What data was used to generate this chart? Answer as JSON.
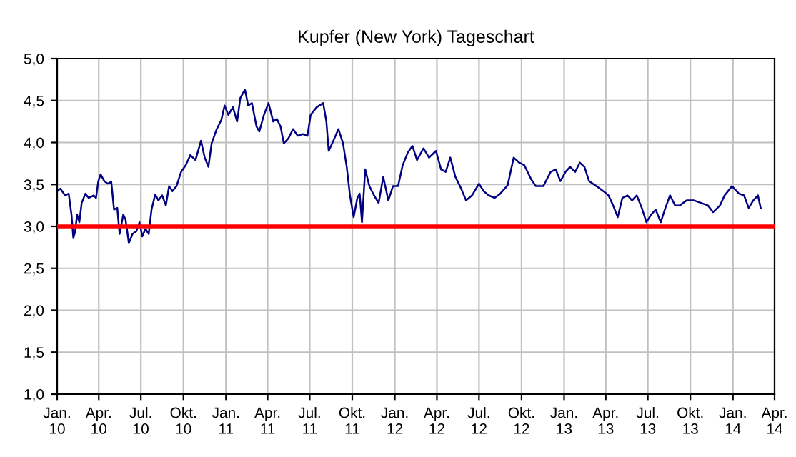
{
  "chart_data": {
    "type": "line",
    "title": "Kupfer (New York) Tageschart",
    "x": [
      "2010-01-01",
      "2010-01-08",
      "2010-01-18",
      "2010-01-26",
      "2010-02-01",
      "2010-02-05",
      "2010-02-09",
      "2010-02-13",
      "2010-02-18",
      "2010-02-23",
      "2010-03-03",
      "2010-03-10",
      "2010-03-21",
      "2010-03-26",
      "2010-03-31",
      "2010-04-05",
      "2010-04-13",
      "2010-04-20",
      "2010-04-28",
      "2010-05-04",
      "2010-05-11",
      "2010-05-16",
      "2010-05-24",
      "2010-05-29",
      "2010-06-05",
      "2010-06-13",
      "2010-06-21",
      "2010-06-28",
      "2010-07-04",
      "2010-07-11",
      "2010-07-18",
      "2010-07-24",
      "2010-08-01",
      "2010-08-08",
      "2010-08-16",
      "2010-08-24",
      "2010-08-31",
      "2010-09-07",
      "2010-09-16",
      "2010-09-26",
      "2010-10-06",
      "2010-10-16",
      "2010-10-27",
      "2010-11-08",
      "2010-11-16",
      "2010-11-24",
      "2010-12-01",
      "2010-12-12",
      "2010-12-22",
      "2010-12-29",
      "2011-01-06",
      "2011-01-16",
      "2011-01-25",
      "2011-02-01",
      "2011-02-11",
      "2011-02-18",
      "2011-02-26",
      "2011-03-08",
      "2011-03-14",
      "2011-03-24",
      "2011-04-03",
      "2011-04-13",
      "2011-04-21",
      "2011-04-29",
      "2011-05-06",
      "2011-05-16",
      "2011-05-26",
      "2011-06-05",
      "2011-06-16",
      "2011-06-26",
      "2011-07-03",
      "2011-07-16",
      "2011-07-30",
      "2011-08-06",
      "2011-08-11",
      "2011-08-21",
      "2011-09-01",
      "2011-09-11",
      "2011-09-19",
      "2011-09-26",
      "2011-10-04",
      "2011-10-12",
      "2011-10-17",
      "2011-10-22",
      "2011-10-29",
      "2011-11-07",
      "2011-11-17",
      "2011-11-27",
      "2011-12-07",
      "2011-12-18",
      "2011-12-28",
      "2012-01-08",
      "2012-01-18",
      "2012-01-29",
      "2012-02-08",
      "2012-02-18",
      "2012-03-03",
      "2012-03-15",
      "2012-03-30",
      "2012-04-10",
      "2012-04-20",
      "2012-04-30",
      "2012-05-11",
      "2012-05-21",
      "2012-06-03",
      "2012-06-16",
      "2012-07-01",
      "2012-07-11",
      "2012-07-22",
      "2012-08-04",
      "2012-08-16",
      "2012-09-01",
      "2012-09-14",
      "2012-09-26",
      "2012-10-07",
      "2012-10-22",
      "2012-11-01",
      "2012-11-17",
      "2012-12-03",
      "2012-12-14",
      "2012-12-24",
      "2013-01-04",
      "2013-01-14",
      "2013-01-25",
      "2013-02-04",
      "2013-02-14",
      "2013-02-24",
      "2013-03-12",
      "2013-03-27",
      "2013-04-07",
      "2013-04-17",
      "2013-04-27",
      "2013-05-07",
      "2013-05-18",
      "2013-05-28",
      "2013-06-07",
      "2013-06-18",
      "2013-06-28",
      "2013-07-08",
      "2013-07-18",
      "2013-07-29",
      "2013-08-08",
      "2013-08-18",
      "2013-08-29",
      "2013-09-08",
      "2013-09-23",
      "2013-10-09",
      "2013-10-24",
      "2013-11-08",
      "2013-11-19",
      "2013-12-04",
      "2013-12-14",
      "2013-12-30",
      "2014-01-14",
      "2014-01-25",
      "2014-02-04",
      "2014-02-14",
      "2014-02-24",
      "2014-03-02"
    ],
    "series": [
      {
        "color": "#000080",
        "values": [
          3.42,
          3.45,
          3.37,
          3.39,
          3.14,
          2.86,
          2.94,
          3.14,
          3.05,
          3.28,
          3.39,
          3.34,
          3.37,
          3.34,
          3.54,
          3.62,
          3.54,
          3.51,
          3.53,
          3.2,
          3.22,
          2.91,
          3.14,
          3.08,
          2.8,
          2.91,
          2.94,
          3.05,
          2.88,
          2.97,
          2.91,
          3.2,
          3.38,
          3.31,
          3.37,
          3.25,
          3.48,
          3.42,
          3.48,
          3.65,
          3.73,
          3.85,
          3.79,
          4.02,
          3.82,
          3.71,
          3.99,
          4.16,
          4.27,
          4.44,
          4.33,
          4.42,
          4.25,
          4.53,
          4.63,
          4.44,
          4.47,
          4.19,
          4.13,
          4.33,
          4.47,
          4.25,
          4.28,
          4.19,
          3.99,
          4.05,
          4.16,
          4.08,
          4.1,
          4.08,
          4.33,
          4.42,
          4.47,
          4.25,
          3.9,
          4.02,
          4.16,
          3.99,
          3.71,
          3.37,
          3.11,
          3.34,
          3.39,
          3.05,
          3.68,
          3.48,
          3.37,
          3.28,
          3.59,
          3.31,
          3.48,
          3.48,
          3.73,
          3.88,
          3.96,
          3.79,
          3.93,
          3.82,
          3.9,
          3.68,
          3.65,
          3.82,
          3.59,
          3.48,
          3.31,
          3.37,
          3.51,
          3.42,
          3.37,
          3.34,
          3.39,
          3.49,
          3.82,
          3.76,
          3.73,
          3.56,
          3.48,
          3.48,
          3.65,
          3.68,
          3.54,
          3.65,
          3.71,
          3.65,
          3.76,
          3.71,
          3.54,
          3.48,
          3.42,
          3.37,
          3.25,
          3.11,
          3.34,
          3.37,
          3.31,
          3.37,
          3.22,
          3.05,
          3.14,
          3.2,
          3.05,
          3.22,
          3.37,
          3.25,
          3.25,
          3.31,
          3.31,
          3.28,
          3.25,
          3.17,
          3.25,
          3.37,
          3.48,
          3.39,
          3.37,
          3.22,
          3.31,
          3.37,
          3.22
        ]
      }
    ],
    "xlim": [
      "2010-01-01",
      "2014-04-01"
    ],
    "xticks": [
      {
        "value": "2010-01-01",
        "label": "Jan.\n10"
      },
      {
        "value": "2010-04-01",
        "label": "Apr.\n10"
      },
      {
        "value": "2010-07-01",
        "label": "Jul.\n10"
      },
      {
        "value": "2010-10-01",
        "label": "Okt.\n10"
      },
      {
        "value": "2011-01-01",
        "label": "Jan.\n11"
      },
      {
        "value": "2011-04-01",
        "label": "Apr.\n11"
      },
      {
        "value": "2011-07-01",
        "label": "Jul.\n11"
      },
      {
        "value": "2011-10-01",
        "label": "Okt.\n11"
      },
      {
        "value": "2012-01-01",
        "label": "Jan.\n12"
      },
      {
        "value": "2012-04-01",
        "label": "Apr.\n12"
      },
      {
        "value": "2012-07-01",
        "label": "Jul.\n12"
      },
      {
        "value": "2012-10-01",
        "label": "Okt.\n12"
      },
      {
        "value": "2013-01-01",
        "label": "Jan.\n13"
      },
      {
        "value": "2013-04-01",
        "label": "Apr.\n13"
      },
      {
        "value": "2013-07-01",
        "label": "Jul.\n13"
      },
      {
        "value": "2013-10-01",
        "label": "Okt.\n13"
      },
      {
        "value": "2014-01-01",
        "label": "Jan.\n14"
      },
      {
        "value": "2014-04-01",
        "label": "Apr.\n14"
      }
    ],
    "ylim": [
      1,
      5
    ],
    "yticks": [
      {
        "value": 1,
        "label": "1,0"
      },
      {
        "value": 1.5,
        "label": "1,5"
      },
      {
        "value": 2,
        "label": "2,0"
      },
      {
        "value": 2.5,
        "label": "2,5"
      },
      {
        "value": 3,
        "label": "3,0"
      },
      {
        "value": 3.5,
        "label": "3,5"
      },
      {
        "value": 4,
        "label": "4,0"
      },
      {
        "value": 4.5,
        "label": "4,5"
      },
      {
        "value": 5,
        "label": "5,0"
      }
    ],
    "ref_lines": [
      {
        "axis": "y",
        "value": 3,
        "color": "#ff0000"
      }
    ],
    "grid": true
  }
}
